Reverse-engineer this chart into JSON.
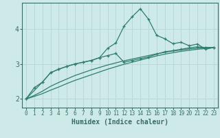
{
  "xlabel": "Humidex (Indice chaleur)",
  "bg_color": "#ceeae8",
  "grid_color": "#b8d8d5",
  "line_color": "#2e7d6e",
  "axis_color": "#3a6b62",
  "xlim": [
    -0.5,
    23.5
  ],
  "ylim": [
    1.75,
    4.75
  ],
  "yticks": [
    2,
    3,
    4
  ],
  "xticks": [
    0,
    1,
    2,
    3,
    4,
    5,
    6,
    7,
    8,
    9,
    10,
    11,
    12,
    13,
    14,
    15,
    16,
    17,
    18,
    19,
    20,
    21,
    22,
    23
  ],
  "line1_x": [
    0,
    1,
    2,
    3,
    4,
    5,
    6,
    7,
    8,
    9,
    10,
    11,
    12,
    13,
    14,
    15,
    16,
    17,
    18,
    19,
    20,
    21,
    22,
    23
  ],
  "line1_y": [
    2.0,
    2.32,
    2.48,
    2.75,
    2.85,
    2.93,
    3.0,
    3.05,
    3.1,
    3.18,
    3.45,
    3.6,
    4.08,
    4.35,
    4.58,
    4.28,
    3.82,
    3.72,
    3.58,
    3.62,
    3.52,
    3.57,
    3.42,
    3.47
  ],
  "line2_x": [
    0,
    2,
    3,
    4,
    5,
    6,
    7,
    8,
    9,
    10,
    11,
    12,
    13,
    14,
    15,
    16,
    17,
    18,
    19,
    20,
    21,
    22,
    23
  ],
  "line2_y": [
    2.0,
    2.48,
    2.75,
    2.85,
    2.93,
    3.0,
    3.05,
    3.1,
    3.18,
    3.24,
    3.3,
    3.05,
    3.1,
    3.15,
    3.2,
    3.28,
    3.35,
    3.38,
    3.42,
    3.46,
    3.49,
    3.47,
    3.47
  ],
  "line3_x": [
    0,
    1,
    2,
    3,
    4,
    5,
    6,
    7,
    8,
    9,
    10,
    11,
    12,
    13,
    14,
    15,
    16,
    17,
    18,
    19,
    20,
    21,
    22,
    23
  ],
  "line3_y": [
    2.0,
    2.1,
    2.22,
    2.36,
    2.47,
    2.57,
    2.67,
    2.75,
    2.83,
    2.9,
    2.97,
    3.03,
    3.09,
    3.14,
    3.19,
    3.24,
    3.29,
    3.33,
    3.37,
    3.4,
    3.43,
    3.45,
    3.47,
    3.47
  ],
  "line4_x": [
    0,
    1,
    2,
    3,
    4,
    5,
    6,
    7,
    8,
    9,
    10,
    11,
    12,
    13,
    14,
    15,
    16,
    17,
    18,
    19,
    20,
    21,
    22,
    23
  ],
  "line4_y": [
    2.0,
    2.07,
    2.15,
    2.25,
    2.34,
    2.44,
    2.53,
    2.61,
    2.69,
    2.77,
    2.85,
    2.92,
    2.99,
    3.05,
    3.11,
    3.17,
    3.23,
    3.28,
    3.32,
    3.36,
    3.39,
    3.42,
    3.44,
    3.47
  ]
}
